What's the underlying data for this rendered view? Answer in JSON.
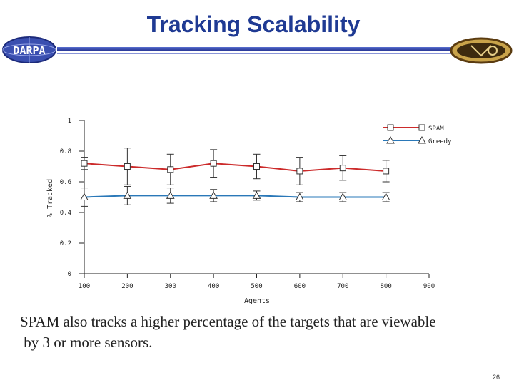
{
  "slide": {
    "title": "Tracking Scalability",
    "logo_left_text": "DARPA",
    "caption_line1": "SPAM also tracks a higher percentage of the targets that are viewable",
    "caption_line2": " by 3 or more sensors.",
    "page_number": "26"
  },
  "colors": {
    "title": "#1f3a93",
    "spam": "#cc2b2b",
    "greedy": "#2a78b8",
    "rule": "#2b3a9e"
  },
  "chart_data": {
    "type": "line",
    "xlabel": "Agents",
    "ylabel": "% Tracked",
    "xlim": [
      100,
      900
    ],
    "ylim": [
      0,
      1
    ],
    "x_ticks": [
      "100",
      "200",
      "300",
      "400",
      "500",
      "600",
      "700",
      "800",
      "900"
    ],
    "y_ticks": [
      "0",
      "0.2",
      "0.4",
      "0.6",
      "0.8",
      "1"
    ],
    "legend_position": "top-right",
    "grid": false,
    "x": [
      100,
      200,
      300,
      400,
      500,
      600,
      700,
      800
    ],
    "series": [
      {
        "name": "SPAM",
        "marker": "square",
        "values": [
          0.72,
          0.7,
          0.68,
          0.72,
          0.7,
          0.67,
          0.69,
          0.67
        ],
        "err": [
          0.04,
          0.12,
          0.1,
          0.09,
          0.08,
          0.09,
          0.08,
          0.07
        ]
      },
      {
        "name": "Greedy",
        "marker": "triangle",
        "values": [
          0.5,
          0.51,
          0.51,
          0.51,
          0.51,
          0.5,
          0.5,
          0.5
        ],
        "err": [
          0.06,
          0.06,
          0.05,
          0.04,
          0.03,
          0.03,
          0.03,
          0.03
        ]
      }
    ]
  }
}
